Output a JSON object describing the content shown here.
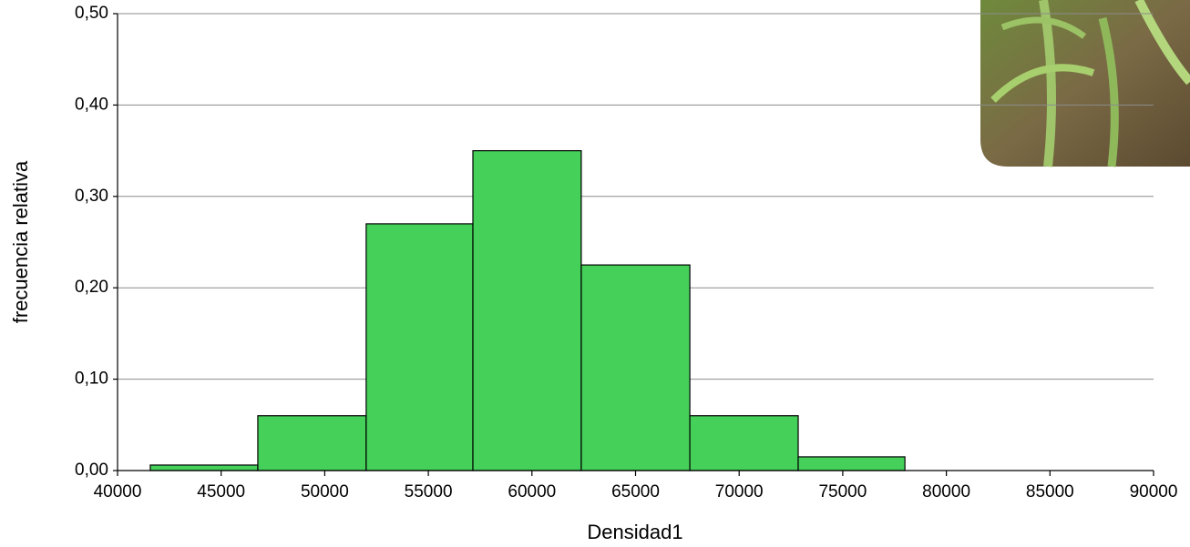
{
  "chart_data": {
    "type": "histogram",
    "x_label": "Densidad1",
    "y_label": "frecuencia relativa",
    "bins": [
      41580,
      46770,
      52000,
      57150,
      62380,
      67620,
      72850,
      78000
    ],
    "values": [
      0.006,
      0.06,
      0.27,
      0.35,
      0.225,
      0.06,
      0.015
    ],
    "color": "#45d05a",
    "xlim": [
      40000,
      90000
    ],
    "xticks": [
      40000,
      45000,
      50000,
      55000,
      60000,
      65000,
      70000,
      75000,
      80000,
      85000,
      90000
    ],
    "ylim": [
      0,
      0.5
    ],
    "yticks": [
      {
        "value": 0,
        "label": "0,00"
      },
      {
        "value": 0.1,
        "label": "0,10"
      },
      {
        "value": 0.2,
        "label": "0,20"
      },
      {
        "value": 0.3,
        "label": "0,30"
      },
      {
        "value": 0.4,
        "label": "0,40"
      },
      {
        "value": 0.5,
        "label": "0,50"
      }
    ],
    "grid": true
  }
}
